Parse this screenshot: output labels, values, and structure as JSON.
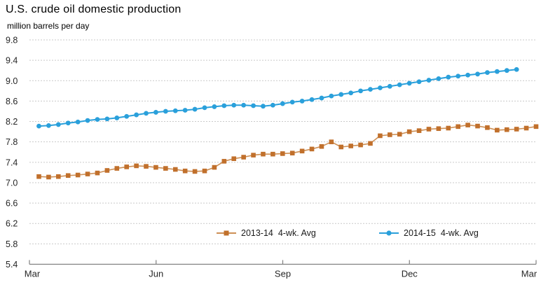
{
  "chart_data": {
    "type": "line",
    "title": "U.S. crude oil domestic production",
    "ylabel": "million barrels per day",
    "xlabel": "",
    "ylim": [
      5.4,
      9.8
    ],
    "ytick_step": 0.4,
    "yticks": [
      5.4,
      5.8,
      6.2,
      6.6,
      7.0,
      7.4,
      7.8,
      8.2,
      8.6,
      9.0,
      9.4,
      9.8
    ],
    "xtick_labels": [
      "Mar",
      "Jun",
      "Sep",
      "Dec",
      "Mar"
    ],
    "x_axis_span_weeks": 52,
    "grid": "horizontal dashed lines on",
    "legend_position": "inside bottom center",
    "colors": {
      "grid": "#c9c9c9",
      "axis": "#808080",
      "tick_text": "#262626"
    },
    "series": [
      {
        "name": "2013-14  4-wk. Avg",
        "marker": "square",
        "marker_color": "#c1702c",
        "line_color": "#cd8f55",
        "start_week": 1,
        "values": [
          7.12,
          7.11,
          7.12,
          7.14,
          7.15,
          7.17,
          7.19,
          7.24,
          7.28,
          7.31,
          7.33,
          7.32,
          7.3,
          7.28,
          7.26,
          7.23,
          7.22,
          7.23,
          7.3,
          7.42,
          7.47,
          7.5,
          7.54,
          7.56,
          7.56,
          7.57,
          7.58,
          7.62,
          7.66,
          7.71,
          7.8,
          7.7,
          7.72,
          7.74,
          7.77,
          7.92,
          7.94,
          7.95,
          8.0,
          8.02,
          8.05,
          8.06,
          8.07,
          8.1,
          8.13,
          8.11,
          8.08,
          8.03,
          8.04,
          8.05,
          8.07,
          8.1
        ]
      },
      {
        "name": "2014-15  4-wk. Avg",
        "marker": "circle",
        "marker_color": "#2aa0db",
        "line_color": "#2aa0db",
        "start_week": 1,
        "values": [
          8.11,
          8.12,
          8.14,
          8.17,
          8.19,
          8.22,
          8.24,
          8.25,
          8.27,
          8.3,
          8.33,
          8.36,
          8.38,
          8.4,
          8.41,
          8.42,
          8.44,
          8.47,
          8.49,
          8.51,
          8.52,
          8.52,
          8.51,
          8.5,
          8.52,
          8.55,
          8.58,
          8.6,
          8.63,
          8.66,
          8.7,
          8.73,
          8.76,
          8.8,
          8.83,
          8.86,
          8.89,
          8.92,
          8.95,
          8.98,
          9.01,
          9.04,
          9.07,
          9.09,
          9.11,
          9.13,
          9.16,
          9.18,
          9.2,
          9.22
        ]
      }
    ]
  }
}
